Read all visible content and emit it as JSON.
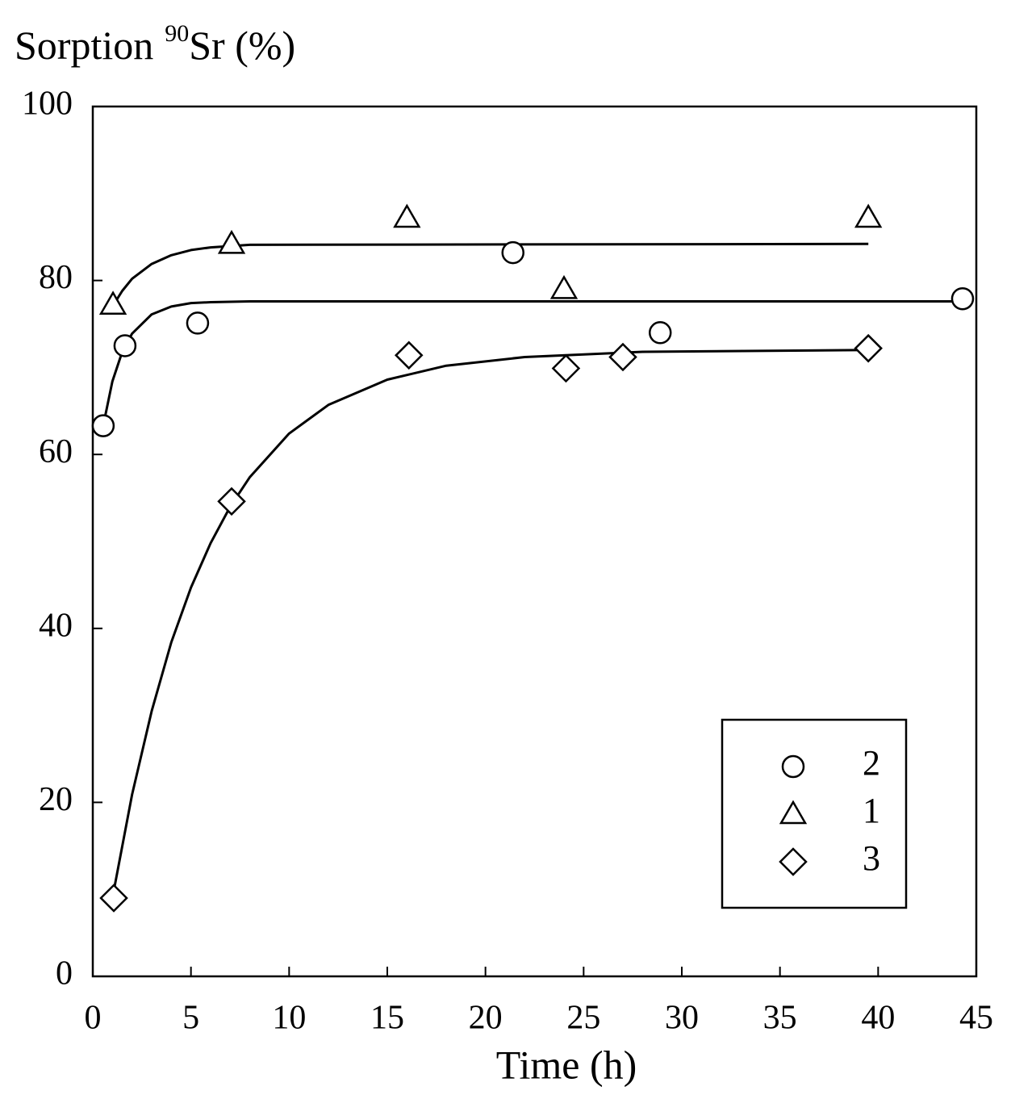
{
  "chart_data": {
    "type": "scatter",
    "ylabel": {
      "prefix": "Sorption",
      "sup": "90",
      "suffix": "Sr (%)"
    },
    "xlabel": "Time (h)",
    "xlim": [
      0,
      45
    ],
    "xticks": [
      0,
      5,
      10,
      15,
      20,
      25,
      30,
      35,
      40,
      45
    ],
    "ylim": [
      0,
      100
    ],
    "yticks": [
      0,
      20,
      40,
      60,
      80,
      100
    ],
    "legend": "lower right",
    "color": "#000000",
    "series": [
      {
        "name": "2",
        "marker": "circle",
        "x": [
          0.53,
          1.64,
          5.34,
          21.4,
          28.9,
          44.3
        ],
        "values": [
          63.3,
          72.5,
          75.1,
          83.2,
          74.0,
          77.9
        ],
        "fit": {
          "x": [
            0.5,
            1,
            1.5,
            2,
            3,
            4,
            5,
            6,
            8,
            44.3
          ],
          "values": [
            63.0,
            68.4,
            71.8,
            73.9,
            76.1,
            77.0,
            77.4,
            77.5,
            77.6,
            77.6
          ]
        }
      },
      {
        "name": "1",
        "marker": "triangle",
        "x": [
          1.03,
          7.07,
          16.0,
          24.0,
          39.5
        ],
        "values": [
          77.2,
          84.2,
          87.2,
          79.0,
          87.2
        ],
        "fit": {
          "x": [
            1,
            1.5,
            2,
            3,
            4,
            5,
            6,
            8,
            39.5
          ],
          "values": [
            77.0,
            78.8,
            80.2,
            81.9,
            82.9,
            83.5,
            83.8,
            84.1,
            84.2
          ]
        }
      },
      {
        "name": "3",
        "marker": "diamond",
        "x": [
          1.07,
          7.07,
          16.1,
          24.1,
          27.0,
          39.5
        ],
        "values": [
          9.0,
          54.6,
          71.4,
          69.9,
          71.2,
          72.2
        ],
        "fit": {
          "x": [
            1,
            2,
            3,
            4,
            5,
            6,
            7,
            8,
            10,
            12,
            15,
            18,
            22,
            28,
            39.5
          ],
          "values": [
            9.0,
            20.9,
            30.5,
            38.4,
            44.7,
            49.8,
            54.0,
            57.4,
            62.4,
            65.7,
            68.6,
            70.2,
            71.2,
            71.8,
            72.0
          ]
        }
      }
    ]
  }
}
